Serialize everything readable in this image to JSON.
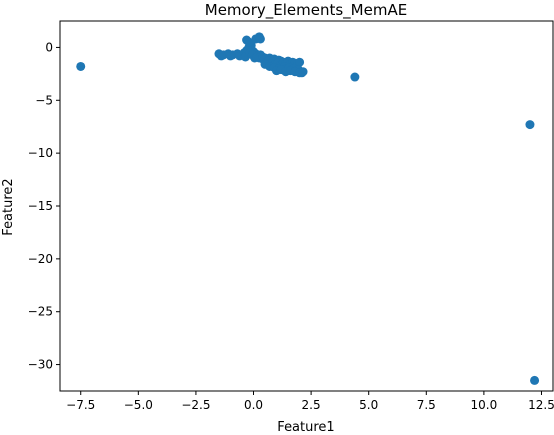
{
  "chart_data": {
    "type": "scatter",
    "title": "Memory_Elements_MemAE",
    "xlabel": "Feature1",
    "ylabel": "Feature2",
    "xlim": [
      -8.4,
      13.0
    ],
    "ylim": [
      -32.5,
      2.5
    ],
    "xticks": [
      -7.5,
      -5.0,
      -2.5,
      0.0,
      2.5,
      5.0,
      7.5,
      10.0,
      12.5
    ],
    "xtick_labels": [
      "−7.5",
      "−5.0",
      "−2.5",
      "0.0",
      "2.5",
      "5.0",
      "7.5",
      "10.0",
      "12.5"
    ],
    "yticks": [
      0,
      -5,
      -10,
      -15,
      -20,
      -25,
      -30
    ],
    "ytick_labels": [
      "0",
      "−5",
      "−10",
      "−15",
      "−20",
      "−25",
      "−30"
    ],
    "grid": false,
    "color": "#1f77b4",
    "series": [
      {
        "x": [
          -7.5,
          4.4,
          12.0,
          12.2,
          -1.5,
          -1.3,
          -1.1,
          -0.9,
          -0.7,
          -0.5,
          -1.4,
          -1.0,
          -0.6,
          -0.4,
          -0.3,
          -0.2,
          -0.1,
          0.0,
          0.1,
          0.2,
          0.3,
          -0.35,
          -0.25,
          -0.15,
          -0.05,
          0.05,
          0.15,
          0.25,
          -0.3,
          -0.2,
          0.1,
          0.25,
          0.3,
          0.4,
          0.5,
          0.6,
          0.7,
          0.8,
          0.9,
          1.0,
          1.1,
          1.2,
          0.45,
          0.55,
          0.65,
          0.75,
          0.85,
          0.95,
          1.05,
          1.15,
          1.25,
          0.5,
          0.7,
          0.9,
          1.1,
          1.3,
          1.3,
          1.4,
          1.5,
          1.6,
          1.7,
          1.8,
          1.9,
          2.0,
          1.35,
          1.45,
          1.55,
          1.65,
          1.75,
          1.85,
          1.95,
          2.1,
          1.0,
          1.2,
          1.4,
          1.6,
          1.8,
          2.0,
          2.15
        ],
        "y": [
          -1.8,
          -2.8,
          -7.3,
          -31.5,
          -0.6,
          -0.7,
          -0.6,
          -0.7,
          -0.6,
          -0.7,
          -0.8,
          -0.8,
          -0.8,
          -0.5,
          -0.3,
          0.0,
          0.2,
          -0.4,
          -0.6,
          -0.8,
          -0.7,
          -0.9,
          -0.2,
          -0.5,
          -0.7,
          -1.0,
          -0.9,
          -1.0,
          0.7,
          0.5,
          0.8,
          1.0,
          0.8,
          -0.9,
          -1.0,
          -1.1,
          -1.0,
          -1.2,
          -1.1,
          -1.3,
          -1.2,
          -1.3,
          -1.2,
          -1.4,
          -1.3,
          -1.5,
          -1.4,
          -1.6,
          -1.5,
          -1.7,
          -1.6,
          -1.6,
          -1.8,
          -1.9,
          -2.0,
          -1.9,
          -1.4,
          -1.5,
          -1.3,
          -1.6,
          -1.4,
          -1.5,
          -1.7,
          -1.4,
          -1.8,
          -2.0,
          -1.9,
          -2.1,
          -2.0,
          -2.2,
          -2.1,
          -2.4,
          -2.2,
          -2.1,
          -2.3,
          -2.2,
          -2.3,
          -2.4,
          -2.3
        ]
      }
    ]
  }
}
